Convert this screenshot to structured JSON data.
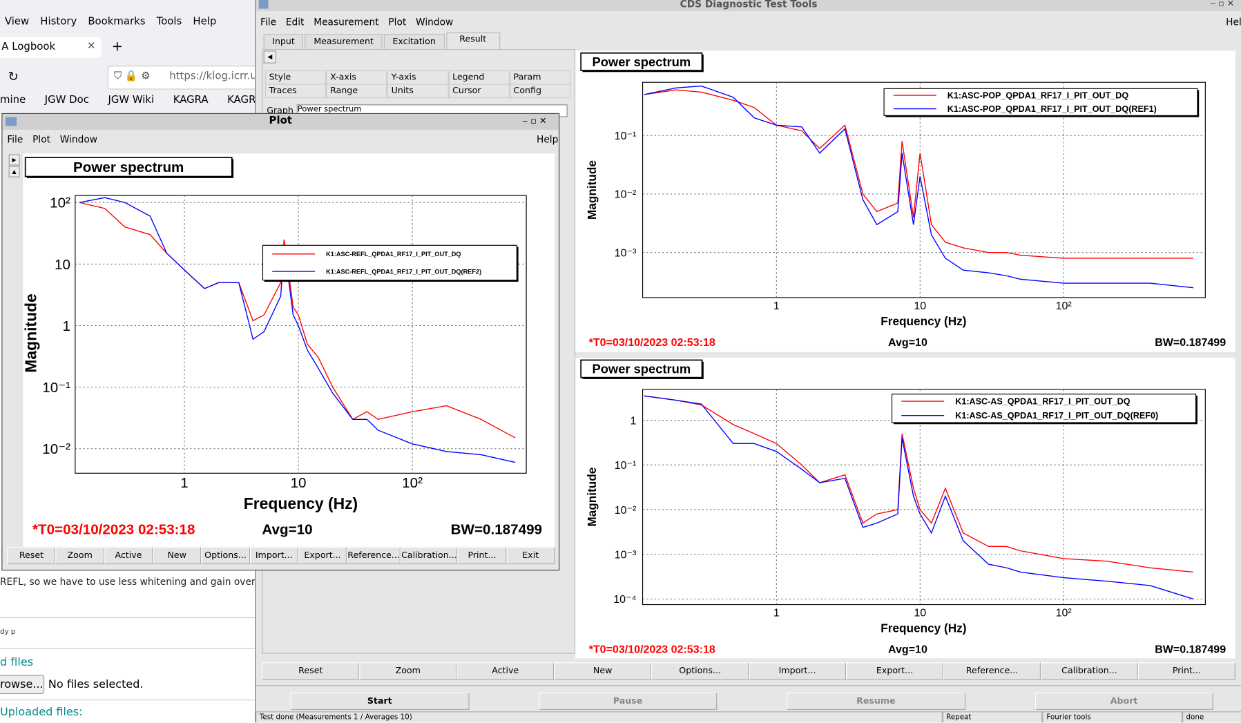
{
  "browser": {
    "menu": [
      "View",
      "History",
      "Bookmarks",
      "Tools",
      "Help"
    ],
    "tab_title": "Logbook",
    "url": "https://klog.icrr.u-",
    "bookmarks": [
      "mine",
      "JGW Doc",
      "JGW Wiki",
      "KAGRA",
      "KAGRA"
    ],
    "post_text": "REFL, so we have to use less whitening and gain overall t",
    "editor_tags": "dy p",
    "files_heading": "d files",
    "browse_button": "rowse...",
    "file_status": "No files selected.",
    "uploaded_heading": "Uploaded files:"
  },
  "dtt": {
    "title": "CDS Diagnostic Test Tools",
    "menu": [
      "File",
      "Edit",
      "Measurement",
      "Plot",
      "Window"
    ],
    "help": "Help",
    "tabs": [
      "Input",
      "Measurement",
      "Excitation",
      "Result"
    ],
    "option_tabs_top": [
      "Style",
      "X-axis",
      "Y-axis",
      "Legend",
      "Param"
    ],
    "option_tabs_bottom": [
      "Traces",
      "Range",
      "Units",
      "Cursor",
      "Config"
    ],
    "graph_label": "Graph",
    "graph_value": "Power spectrum",
    "buttons": [
      "Reset",
      "Zoom",
      "Active",
      "New",
      "Options...",
      "Import...",
      "Export...",
      "Reference...",
      "Calibration...",
      "Print..."
    ],
    "controls": [
      "Start",
      "Pause",
      "Resume",
      "Abort"
    ],
    "status": [
      "Test done (Measurements 1 / Averages 10)",
      "Repeat",
      "Fourier tools",
      "done"
    ]
  },
  "plot_window": {
    "title": "Plot",
    "menu": [
      "File",
      "Plot",
      "Window"
    ],
    "help": "Help",
    "buttons": [
      "Reset",
      "Zoom",
      "Active",
      "New",
      "Options...",
      "Import...",
      "Export...",
      "Reference...",
      "Calibration...",
      "Print...",
      "Exit"
    ]
  },
  "chart_data": [
    {
      "type": "line",
      "title": "Power spectrum",
      "xlabel": "Frequency (Hz)",
      "ylabel": "Magnitude",
      "xscale": "log",
      "yscale": "log",
      "grid": true,
      "legend": "upper right",
      "xlim": [
        0.11,
        1000
      ],
      "ylim": [
        0.004,
        130
      ],
      "xticks": [
        1,
        10,
        {
          "value": 100,
          "label": "10²"
        }
      ],
      "yticks": [
        {
          "value": 100,
          "label": "10²"
        },
        10,
        1,
        {
          "value": 0.1,
          "label": "10⁻¹"
        },
        {
          "value": 0.01,
          "label": "10⁻²"
        }
      ],
      "x": [
        0.12,
        0.2,
        0.3,
        0.5,
        0.7,
        1,
        1.5,
        2,
        3,
        4,
        5,
        7,
        7.5,
        9,
        10,
        12,
        15,
        20,
        30,
        40,
        50,
        100,
        200,
        400,
        800
      ],
      "series": [
        {
          "name": "K1:ASC-REFL_QPDA1_RF17_I_PIT_OUT_DQ",
          "color": "#ff0000",
          "values": [
            100,
            80,
            40,
            30,
            15,
            8,
            4,
            5,
            5,
            1.2,
            1.5,
            5,
            25,
            2,
            1.5,
            0.5,
            0.3,
            0.1,
            0.03,
            0.04,
            0.03,
            0.04,
            0.05,
            0.03,
            0.015
          ]
        },
        {
          "name": "K1:ASC-REFL_QPDA1_RF17_I_PIT_OUT_DQ(REF2)",
          "color": "#0000ff",
          "values": [
            100,
            120,
            100,
            60,
            15,
            8,
            4,
            5,
            5,
            0.6,
            0.8,
            3,
            20,
            1.5,
            1,
            0.4,
            0.2,
            0.08,
            0.03,
            0.03,
            0.02,
            0.012,
            0.009,
            0.008,
            0.006
          ]
        }
      ],
      "annotations": [
        "*T0=03/10/2023 02:53:18",
        "Avg=10",
        "BW=0.187499"
      ]
    },
    {
      "type": "line",
      "title": "Power spectrum",
      "xlabel": "Frequency (Hz)",
      "ylabel": "Magnitude",
      "xscale": "log",
      "yscale": "log",
      "grid": true,
      "legend": "upper right",
      "xlim": [
        0.117,
        970
      ],
      "ylim": [
        0.00017,
        0.81
      ],
      "xticks": [
        1,
        10,
        {
          "value": 100,
          "label": "10²"
        }
      ],
      "yticks": [
        {
          "value": 0.1,
          "label": "10⁻¹"
        },
        {
          "value": 0.01,
          "label": "10⁻²"
        },
        {
          "value": 0.001,
          "label": "10⁻³"
        }
      ],
      "x": [
        0.12,
        0.2,
        0.3,
        0.5,
        0.7,
        1,
        1.5,
        2,
        3,
        4,
        5,
        7,
        7.5,
        9,
        10,
        12,
        15,
        20,
        30,
        40,
        50,
        100,
        200,
        400,
        800
      ],
      "series": [
        {
          "name": "K1:ASC-POP_QPDA1_RF17_I_PIT_OUT_DQ",
          "color": "#ff0000",
          "values": [
            0.5,
            0.6,
            0.55,
            0.4,
            0.3,
            0.15,
            0.12,
            0.06,
            0.15,
            0.01,
            0.005,
            0.007,
            0.08,
            0.004,
            0.05,
            0.003,
            0.0015,
            0.0012,
            0.001,
            0.001,
            0.0009,
            0.0008,
            0.0008,
            0.0008,
            0.0008
          ]
        },
        {
          "name": "K1:ASC-POP_QPDA1_RF17_I_PIT_OUT_DQ(REF1)",
          "color": "#0000ff",
          "values": [
            0.5,
            0.65,
            0.7,
            0.45,
            0.2,
            0.15,
            0.14,
            0.05,
            0.13,
            0.008,
            0.003,
            0.005,
            0.05,
            0.003,
            0.02,
            0.002,
            0.0008,
            0.0005,
            0.00045,
            0.0004,
            0.00035,
            0.0003,
            0.0003,
            0.0003,
            0.00025
          ]
        }
      ],
      "annotations": [
        "*T0=03/10/2023 02:53:18",
        "Avg=10",
        "BW=0.187499"
      ]
    },
    {
      "type": "line",
      "title": "Power spectrum",
      "xlabel": "Frequency (Hz)",
      "ylabel": "Magnitude",
      "xscale": "log",
      "yscale": "log",
      "grid": true,
      "legend": "upper right",
      "xlim": [
        0.117,
        970
      ],
      "ylim": [
        7.5e-05,
        4.9
      ],
      "xticks": [
        1,
        10,
        {
          "value": 100,
          "label": "10²"
        }
      ],
      "yticks": [
        1,
        {
          "value": 0.1,
          "label": "10⁻¹"
        },
        {
          "value": 0.01,
          "label": "10⁻²"
        },
        {
          "value": 0.001,
          "label": "10⁻³"
        },
        {
          "value": 0.0001,
          "label": "10⁻⁴"
        }
      ],
      "x": [
        0.12,
        0.2,
        0.3,
        0.5,
        0.7,
        1,
        1.5,
        2,
        3,
        4,
        5,
        7,
        7.5,
        9,
        10,
        12,
        15,
        20,
        30,
        40,
        50,
        100,
        200,
        400,
        800
      ],
      "series": [
        {
          "name": "K1:ASC-AS_QPDA1_RF17_I_PIT_OUT_DQ",
          "color": "#ff0000",
          "values": [
            3.5,
            2.8,
            2.2,
            0.8,
            0.5,
            0.3,
            0.1,
            0.04,
            0.06,
            0.005,
            0.008,
            0.01,
            0.5,
            0.03,
            0.01,
            0.005,
            0.03,
            0.003,
            0.0015,
            0.0015,
            0.0012,
            0.0008,
            0.0007,
            0.0005,
            0.0004
          ]
        },
        {
          "name": "K1:ASC-AS_QPDA1_RF17_I_PIT_OUT_DQ(REF0)",
          "color": "#0000ff",
          "values": [
            3.5,
            2.8,
            2.3,
            0.3,
            0.3,
            0.2,
            0.08,
            0.04,
            0.05,
            0.004,
            0.005,
            0.008,
            0.4,
            0.02,
            0.008,
            0.003,
            0.02,
            0.002,
            0.0006,
            0.0005,
            0.0004,
            0.0003,
            0.00025,
            0.0002,
            0.0001
          ]
        }
      ],
      "annotations": [
        "*T0=03/10/2023 02:53:18",
        "Avg=10",
        "BW=0.187499"
      ]
    }
  ]
}
